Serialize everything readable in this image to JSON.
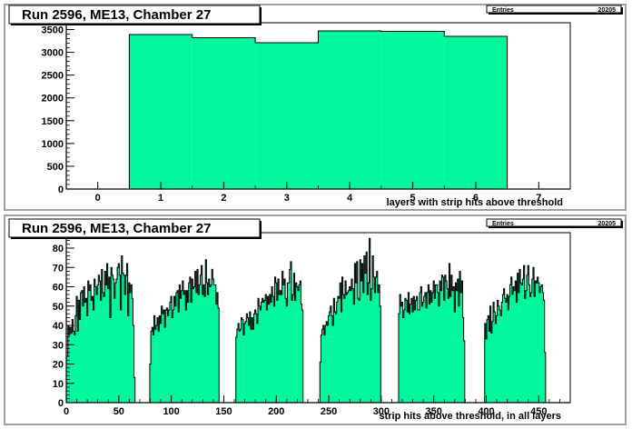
{
  "chart_data": [
    {
      "type": "bar",
      "title": "Run 2596, ME13, Chamber 27",
      "stats": {
        "label": "Entries",
        "value": "20205"
      },
      "xlabel": "layers with strip hits above threshold",
      "xlim": [
        -0.5,
        7.5
      ],
      "ylim": [
        0,
        3650
      ],
      "xticks": [
        0,
        1,
        2,
        3,
        4,
        5,
        6,
        7
      ],
      "yticks": [
        0,
        500,
        1000,
        1500,
        2000,
        2500,
        3000,
        3500
      ],
      "bin_width": 1,
      "x": [
        1,
        2,
        3,
        4,
        5,
        6
      ],
      "values": [
        3390,
        3320,
        3210,
        3470,
        3460,
        3350
      ],
      "fill": "#00f79e"
    },
    {
      "type": "bar",
      "title": "Run 2596, ME13, Chamber 27",
      "stats": {
        "label": "Entries",
        "value": "20205"
      },
      "xlabel": "strip hits above threshold, in all layers",
      "xlim": [
        0,
        480
      ],
      "ylim": [
        0,
        88
      ],
      "xticks": [
        0,
        50,
        100,
        150,
        200,
        250,
        300,
        350,
        400,
        450
      ],
      "yticks": [
        0,
        10,
        20,
        30,
        40,
        50,
        60,
        70,
        80
      ],
      "bin_width": 1,
      "x_start": 1,
      "values": [
        24,
        40,
        35,
        39,
        36,
        43,
        37,
        35,
        45,
        55,
        37,
        53,
        43,
        57,
        58,
        50,
        60,
        52,
        54,
        45,
        63,
        58,
        61,
        53,
        55,
        48,
        64,
        60,
        56,
        61,
        66,
        63,
        53,
        69,
        57,
        55,
        68,
        61,
        72,
        59,
        65,
        44,
        70,
        66,
        64,
        54,
        62,
        64,
        70,
        72,
        66,
        48,
        76,
        67,
        66,
        56,
        66,
        72,
        45,
        62,
        57,
        61,
        54,
        40,
        13,
        0,
        0,
        0,
        0,
        0,
        0,
        0,
        0,
        0,
        0,
        0,
        0,
        0,
        0,
        20,
        37,
        39,
        35,
        45,
        38,
        40,
        44,
        37,
        45,
        41,
        50,
        46,
        48,
        39,
        48,
        49,
        45,
        48,
        52,
        55,
        44,
        48,
        55,
        50,
        57,
        58,
        47,
        61,
        54,
        58,
        63,
        56,
        58,
        48,
        58,
        52,
        62,
        65,
        52,
        64,
        59,
        60,
        68,
        57,
        69,
        56,
        61,
        66,
        71,
        56,
        61,
        55,
        74,
        62,
        56,
        64,
        60,
        61,
        69,
        64,
        61,
        61,
        51,
        57,
        49,
        0,
        0,
        0,
        0,
        0,
        0,
        0,
        0,
        0,
        0,
        0,
        0,
        0,
        0,
        0,
        0,
        34,
        38,
        41,
        37,
        38,
        44,
        43,
        35,
        41,
        42,
        46,
        44,
        40,
        47,
        38,
        44,
        38,
        46,
        48,
        46,
        41,
        54,
        50,
        48,
        52,
        54,
        52,
        53,
        56,
        48,
        55,
        51,
        56,
        52,
        60,
        55,
        50,
        65,
        62,
        53,
        64,
        56,
        58,
        56,
        68,
        61,
        64,
        54,
        50,
        62,
        62,
        69,
        73,
        53,
        56,
        67,
        53,
        62,
        60,
        58,
        61,
        63,
        51,
        48,
        0,
        0,
        0,
        0,
        0,
        0,
        0,
        0,
        0,
        0,
        0,
        0,
        0,
        0,
        0,
        0,
        21,
        35,
        38,
        40,
        35,
        40,
        42,
        40,
        45,
        47,
        50,
        45,
        40,
        54,
        47,
        46,
        52,
        55,
        54,
        62,
        47,
        65,
        56,
        54,
        63,
        56,
        57,
        58,
        60,
        58,
        64,
        59,
        51,
        72,
        62,
        73,
        54,
        53,
        74,
        63,
        72,
        57,
        76,
        67,
        78,
        56,
        62,
        85,
        53,
        59,
        76,
        65,
        57,
        65,
        68,
        57,
        61,
        50,
        0,
        0,
        0,
        0,
        0,
        0,
        0,
        0,
        0,
        0,
        0,
        0,
        0,
        0,
        0,
        0,
        0,
        46,
        56,
        50,
        52,
        44,
        48,
        54,
        53,
        47,
        57,
        46,
        51,
        54,
        47,
        55,
        48,
        53,
        55,
        48,
        48,
        57,
        60,
        50,
        52,
        55,
        57,
        49,
        57,
        61,
        51,
        58,
        52,
        57,
        63,
        54,
        61,
        61,
        57,
        50,
        63,
        58,
        66,
        65,
        53,
        66,
        63,
        59,
        54,
        72,
        55,
        66,
        58,
        60,
        47,
        62,
        58,
        64,
        50,
        68,
        57,
        63,
        44,
        32,
        0,
        0,
        0,
        0,
        0,
        0,
        0,
        0,
        0,
        0,
        0,
        0,
        0,
        0,
        0,
        0,
        0,
        0,
        0,
        41,
        33,
        43,
        45,
        37,
        50,
        36,
        42,
        52,
        47,
        41,
        45,
        53,
        50,
        48,
        45,
        52,
        56,
        59,
        54,
        52,
        56,
        48,
        55,
        61,
        65,
        56,
        60,
        58,
        63,
        52,
        67,
        57,
        69,
        62,
        61,
        64,
        71,
        54,
        58,
        66,
        71,
        61,
        55,
        57,
        64,
        70,
        55,
        63,
        62,
        65,
        62,
        57,
        60,
        61,
        57,
        53,
        26,
        0,
        0,
        0,
        0,
        0,
        0,
        0,
        0,
        0,
        0,
        0,
        0,
        0,
        0,
        0,
        0,
        0,
        0,
        0
      ],
      "fill": "#00f79e"
    }
  ]
}
